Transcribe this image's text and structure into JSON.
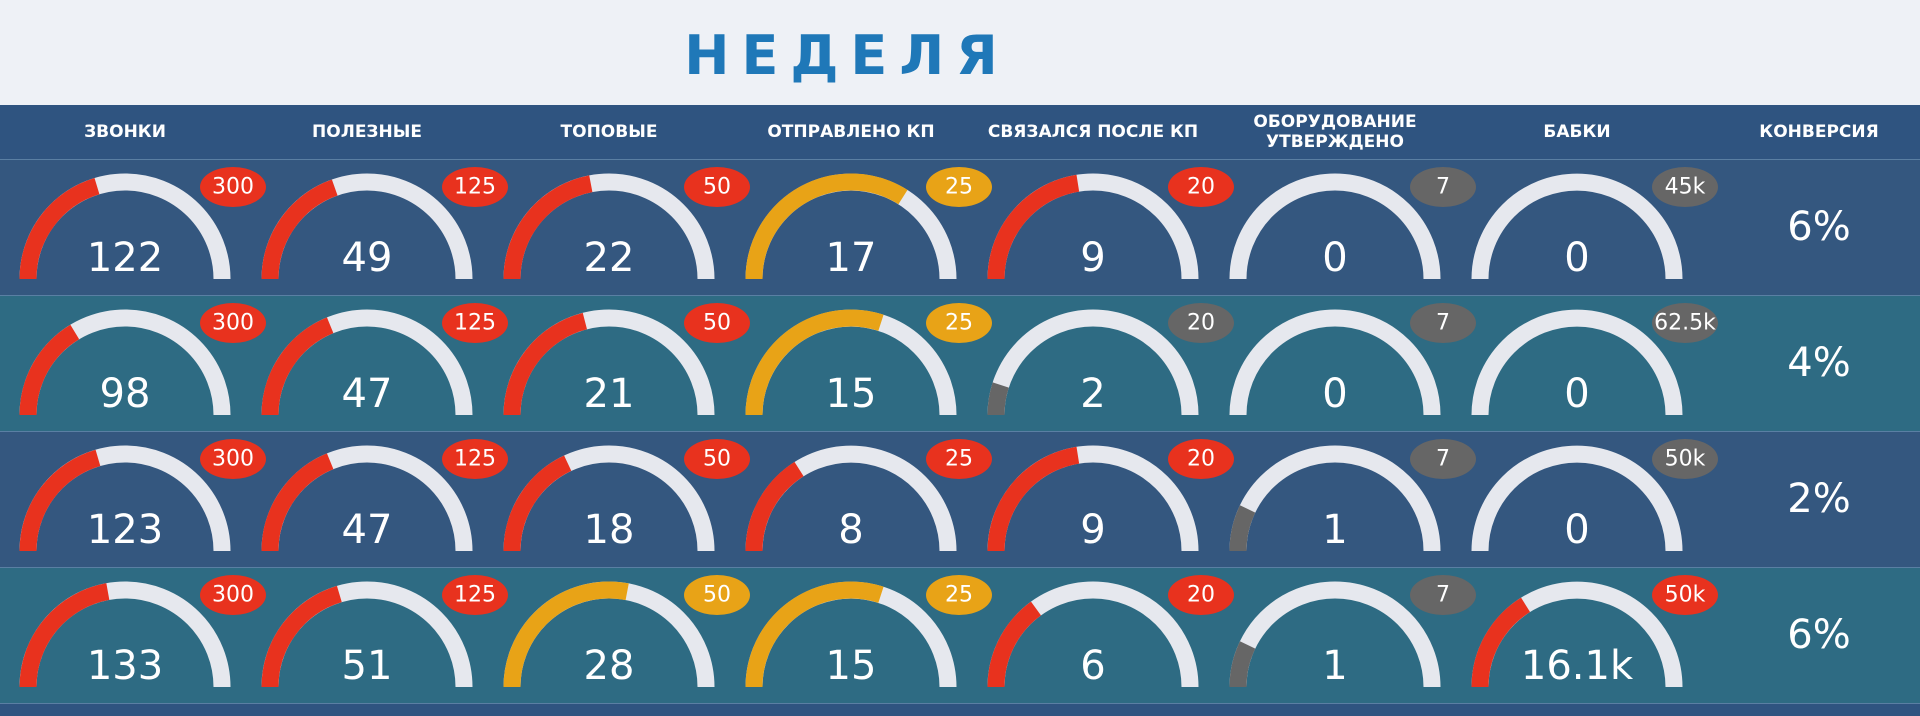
{
  "title": "НЕДЕЛЯ",
  "columns": [
    "ЗВОНКИ",
    "ПОЛЕЗНЫЕ",
    "ТОПОВЫЕ",
    "ОТПРАВЛЕНО КП",
    "СВЯЗАЛСЯ ПОСЛЕ КП",
    "ОБОРУДОВАНИЕ УТВЕРЖДЕНО",
    "БАБКИ",
    "КОНВЕРСИЯ"
  ],
  "rows": [
    {
      "cells": [
        {
          "value": 122,
          "target": 300,
          "color": "#e8321e",
          "target_color": "#e8321e"
        },
        {
          "value": 49,
          "target": 125,
          "color": "#e8321e",
          "target_color": "#e8321e"
        },
        {
          "value": 22,
          "target": 50,
          "color": "#e8321e",
          "target_color": "#e8321e"
        },
        {
          "value": 17,
          "target": 25,
          "color": "#e8a317",
          "target_color": "#e8a317"
        },
        {
          "value": 9,
          "target": 20,
          "color": "#e8321e",
          "target_color": "#e8321e"
        },
        {
          "value": 0,
          "target": 7,
          "color": "#666666",
          "target_color": "#666666"
        },
        {
          "value": 0,
          "target": 45000,
          "target_label": "45k",
          "color": "#666666",
          "target_color": "#666666"
        }
      ],
      "conversion": {
        "value": 6,
        "label": "6%"
      }
    },
    {
      "cells": [
        {
          "value": 98,
          "target": 300,
          "color": "#e8321e",
          "target_color": "#e8321e"
        },
        {
          "value": 47,
          "target": 125,
          "color": "#e8321e",
          "target_color": "#e8321e"
        },
        {
          "value": 21,
          "target": 50,
          "color": "#e8321e",
          "target_color": "#e8321e"
        },
        {
          "value": 15,
          "target": 25,
          "color": "#e8a317",
          "target_color": "#e8a317"
        },
        {
          "value": 2,
          "target": 20,
          "color": "#666666",
          "target_color": "#666666"
        },
        {
          "value": 0,
          "target": 7,
          "color": "#666666",
          "target_color": "#666666"
        },
        {
          "value": 0,
          "target": 62500,
          "target_label": "62.5k",
          "color": "#666666",
          "target_color": "#666666"
        }
      ],
      "conversion": {
        "value": 4,
        "label": "4%"
      }
    },
    {
      "cells": [
        {
          "value": 123,
          "target": 300,
          "color": "#e8321e",
          "target_color": "#e8321e"
        },
        {
          "value": 47,
          "target": 125,
          "color": "#e8321e",
          "target_color": "#e8321e"
        },
        {
          "value": 18,
          "target": 50,
          "color": "#e8321e",
          "target_color": "#e8321e"
        },
        {
          "value": 8,
          "target": 25,
          "color": "#e8321e",
          "target_color": "#e8321e"
        },
        {
          "value": 9,
          "target": 20,
          "color": "#e8321e",
          "target_color": "#e8321e"
        },
        {
          "value": 1,
          "target": 7,
          "color": "#666666",
          "target_color": "#666666"
        },
        {
          "value": 0,
          "target": 50000,
          "target_label": "50k",
          "color": "#666666",
          "target_color": "#666666"
        }
      ],
      "conversion": {
        "value": 2,
        "label": "2%"
      }
    },
    {
      "cells": [
        {
          "value": 133,
          "target": 300,
          "color": "#e8321e",
          "target_color": "#e8321e"
        },
        {
          "value": 51,
          "target": 125,
          "color": "#e8321e",
          "target_color": "#e8321e"
        },
        {
          "value": 28,
          "target": 50,
          "color": "#e8a317",
          "target_color": "#e8a317"
        },
        {
          "value": 15,
          "target": 25,
          "color": "#e8a317",
          "target_color": "#e8a317"
        },
        {
          "value": 6,
          "target": 20,
          "color": "#e8321e",
          "target_color": "#e8321e"
        },
        {
          "value": 1,
          "target": 7,
          "color": "#666666",
          "target_color": "#666666"
        },
        {
          "value": 16100,
          "value_label": "16.1k",
          "target": 50000,
          "target_label": "50k",
          "color": "#e8321e",
          "target_color": "#e8321e"
        }
      ],
      "conversion": {
        "value": 6,
        "label": "6%"
      }
    }
  ]
}
